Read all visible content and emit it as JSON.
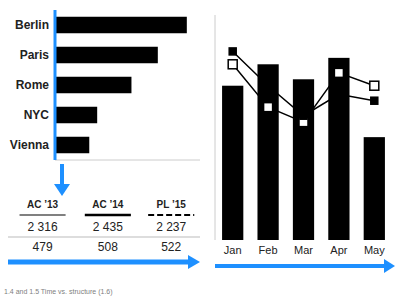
{
  "chart_data": [
    {
      "type": "bar",
      "orientation": "horizontal",
      "categories": [
        "Berlin",
        "Paris",
        "Rome",
        "NYC",
        "Vienna"
      ],
      "values": [
        1.0,
        0.78,
        0.58,
        0.32,
        0.26
      ],
      "color": "#000000",
      "xlim": [
        0,
        1.1
      ],
      "tick_labels": "y",
      "annotations": [
        "1.4 and 1.5 Time vs. structure (1.6)"
      ]
    },
    {
      "type": "table",
      "categories": [
        "AC ’13",
        "AC ’14",
        "PL ’15"
      ],
      "series": [
        {
          "values": [
            2316,
            2435,
            2237
          ],
          "value_labels": [
            "2 316",
            "2 435",
            "2 237"
          ]
        },
        {
          "values": [
            479,
            508,
            522
          ]
        }
      ],
      "data_labels": true
    },
    {
      "type": "bar",
      "categories": [
        "Jan",
        "Feb",
        "Mar",
        "Apr",
        "May"
      ],
      "series": [
        {
          "type": "bar",
          "color": "#000000",
          "values": [
            0.72,
            0.82,
            0.75,
            0.85,
            0.48
          ]
        },
        {
          "type": "line",
          "color": "#000000",
          "marker": "square-open",
          "values": [
            0.82,
            0.62,
            0.55,
            0.78,
            0.72
          ]
        },
        {
          "type": "line",
          "color": "#000000",
          "marker": "square",
          "values": [
            0.88,
            0.72,
            0.58,
            0.68,
            0.65
          ]
        }
      ],
      "ylim": [
        0,
        1.05
      ],
      "yticks": [],
      "tick_labels": "x"
    }
  ]
}
